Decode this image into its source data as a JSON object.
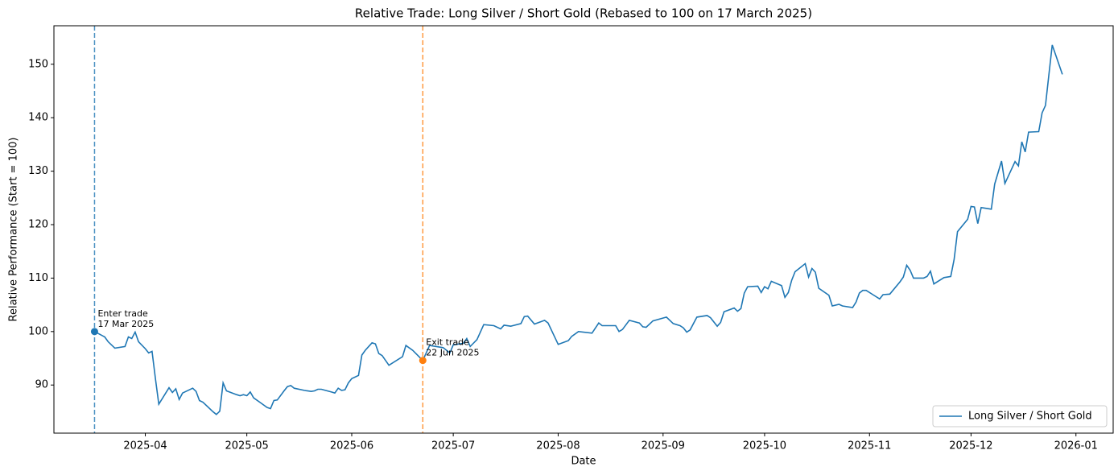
{
  "chart_data": {
    "type": "line",
    "title": "Relative Trade: Long Silver / Short Gold (Rebased to 100 on 17 March 2025)",
    "xlabel": "Date",
    "ylabel": "Relative Performance (Start = 100)",
    "x": [
      "2025-03-17",
      "2025-03-20",
      "2025-03-21",
      "2025-03-23",
      "2025-03-26",
      "2025-03-27",
      "2025-03-28",
      "2025-03-29",
      "2025-03-30",
      "2025-04-01",
      "2025-04-02",
      "2025-04-03",
      "2025-04-04",
      "2025-04-05",
      "2025-04-08",
      "2025-04-09",
      "2025-04-10",
      "2025-04-11",
      "2025-04-12",
      "2025-04-15",
      "2025-04-16",
      "2025-04-17",
      "2025-04-18",
      "2025-04-21",
      "2025-04-22",
      "2025-04-23",
      "2025-04-24",
      "2025-04-25",
      "2025-04-28",
      "2025-04-29",
      "2025-04-30",
      "2025-05-01",
      "2025-05-02",
      "2025-05-03",
      "2025-05-05",
      "2025-05-07",
      "2025-05-08",
      "2025-05-09",
      "2025-05-10",
      "2025-05-12",
      "2025-05-13",
      "2025-05-14",
      "2025-05-15",
      "2025-05-18",
      "2025-05-20",
      "2025-05-21",
      "2025-05-22",
      "2025-05-23",
      "2025-05-26",
      "2025-05-27",
      "2025-05-28",
      "2025-05-29",
      "2025-05-30",
      "2025-05-31",
      "2025-06-01",
      "2025-06-03",
      "2025-06-04",
      "2025-06-05",
      "2025-06-07",
      "2025-06-08",
      "2025-06-09",
      "2025-06-10",
      "2025-06-12",
      "2025-06-16",
      "2025-06-17",
      "2025-06-19",
      "2025-06-22",
      "2025-06-24",
      "2025-06-28",
      "2025-06-30",
      "2025-07-01",
      "2025-07-04",
      "2025-07-05",
      "2025-07-06",
      "2025-07-08",
      "2025-07-10",
      "2025-07-13",
      "2025-07-15",
      "2025-07-16",
      "2025-07-18",
      "2025-07-21",
      "2025-07-22",
      "2025-07-23",
      "2025-07-25",
      "2025-07-28",
      "2025-07-29",
      "2025-08-01",
      "2025-08-04",
      "2025-08-05",
      "2025-08-07",
      "2025-08-11",
      "2025-08-13",
      "2025-08-14",
      "2025-08-18",
      "2025-08-19",
      "2025-08-20",
      "2025-08-22",
      "2025-08-25",
      "2025-08-26",
      "2025-08-27",
      "2025-08-29",
      "2025-09-02",
      "2025-09-04",
      "2025-09-06",
      "2025-09-07",
      "2025-09-08",
      "2025-09-09",
      "2025-09-11",
      "2025-09-14",
      "2025-09-15",
      "2025-09-17",
      "2025-09-18",
      "2025-09-19",
      "2025-09-22",
      "2025-09-23",
      "2025-09-24",
      "2025-09-25",
      "2025-09-26",
      "2025-09-29",
      "2025-09-30",
      "2025-10-01",
      "2025-10-02",
      "2025-10-03",
      "2025-10-06",
      "2025-10-07",
      "2025-10-08",
      "2025-10-09",
      "2025-10-10",
      "2025-10-13",
      "2025-10-14",
      "2025-10-15",
      "2025-10-16",
      "2025-10-17",
      "2025-10-20",
      "2025-10-21",
      "2025-10-23",
      "2025-10-24",
      "2025-10-27",
      "2025-10-28",
      "2025-10-29",
      "2025-10-30",
      "2025-10-31",
      "2025-11-02",
      "2025-11-04",
      "2025-11-05",
      "2025-11-07",
      "2025-11-10",
      "2025-11-11",
      "2025-11-12",
      "2025-11-13",
      "2025-11-14",
      "2025-11-17",
      "2025-11-18",
      "2025-11-19",
      "2025-11-20",
      "2025-11-23",
      "2025-11-25",
      "2025-11-26",
      "2025-11-27",
      "2025-11-30",
      "2025-12-01",
      "2025-12-02",
      "2025-12-03",
      "2025-12-04",
      "2025-12-07",
      "2025-12-08",
      "2025-12-10",
      "2025-12-11",
      "2025-12-14",
      "2025-12-15",
      "2025-12-16",
      "2025-12-17",
      "2025-12-18",
      "2025-12-21",
      "2025-12-22",
      "2025-12-23",
      "2025-12-24",
      "2025-12-25",
      "2025-12-28"
    ],
    "series": [
      {
        "name": "Long Silver / Short Gold",
        "color": "#1f77b4",
        "values": [
          100.0,
          99.0,
          98.1,
          96.9,
          97.2,
          99.0,
          98.7,
          99.9,
          98.1,
          96.8,
          96.0,
          96.3,
          91.2,
          86.4,
          89.5,
          88.6,
          89.3,
          87.3,
          88.5,
          89.4,
          88.8,
          87.1,
          86.8,
          85.0,
          84.5,
          85.1,
          90.4,
          88.9,
          88.2,
          88.0,
          88.2,
          88.0,
          88.7,
          87.6,
          86.7,
          85.8,
          85.6,
          87.1,
          87.2,
          88.9,
          89.7,
          89.9,
          89.4,
          89.0,
          88.8,
          88.9,
          89.2,
          89.2,
          88.7,
          88.5,
          89.4,
          89.0,
          89.1,
          90.4,
          91.2,
          91.8,
          95.6,
          96.5,
          97.9,
          97.7,
          95.9,
          95.5,
          93.7,
          95.3,
          97.4,
          96.5,
          94.6,
          97.4,
          97.0,
          96.0,
          97.5,
          97.8,
          98.7,
          97.2,
          98.5,
          101.3,
          101.1,
          100.5,
          101.2,
          101.0,
          101.5,
          102.8,
          102.9,
          101.4,
          102.1,
          101.6,
          97.6,
          98.3,
          99.1,
          100.0,
          99.7,
          101.6,
          101.1,
          101.1,
          100.0,
          100.4,
          102.1,
          101.6,
          100.9,
          100.8,
          102.0,
          102.7,
          101.5,
          101.1,
          100.7,
          99.9,
          100.3,
          102.7,
          103.0,
          102.6,
          101.0,
          101.7,
          103.7,
          104.4,
          103.8,
          104.3,
          107.2,
          108.4,
          108.5,
          107.3,
          108.4,
          108.0,
          109.4,
          108.6,
          106.4,
          107.3,
          109.6,
          111.2,
          112.7,
          110.2,
          111.8,
          111.1,
          108.1,
          106.8,
          104.8,
          105.1,
          104.8,
          104.5,
          105.5,
          107.2,
          107.7,
          107.7,
          106.9,
          106.1,
          106.9,
          107.0,
          109.3,
          110.2,
          112.4,
          111.5,
          110.0,
          110.0,
          110.3,
          111.3,
          108.9,
          110.1,
          110.3,
          113.5,
          118.7,
          121.0,
          123.4,
          123.3,
          120.2,
          123.2,
          122.9,
          127.6,
          131.9,
          127.7,
          131.8,
          131.0,
          135.5,
          133.6,
          137.3,
          137.4,
          140.9,
          142.3,
          148.0,
          153.6,
          148.1
        ]
      }
    ],
    "xlim": [
      "2025-03-05",
      "2026-01-12"
    ],
    "xticks": [
      {
        "value": "2025-04-01",
        "label": "2025-04"
      },
      {
        "value": "2025-05-01",
        "label": "2025-05"
      },
      {
        "value": "2025-06-01",
        "label": "2025-06"
      },
      {
        "value": "2025-07-01",
        "label": "2025-07"
      },
      {
        "value": "2025-08-01",
        "label": "2025-08"
      },
      {
        "value": "2025-09-01",
        "label": "2025-09"
      },
      {
        "value": "2025-10-01",
        "label": "2025-10"
      },
      {
        "value": "2025-11-01",
        "label": "2025-11"
      },
      {
        "value": "2025-12-01",
        "label": "2025-12"
      },
      {
        "value": "2026-01-01",
        "label": "2026-01"
      }
    ],
    "ylim": [
      81,
      157.2
    ],
    "yticks": [
      90,
      100,
      110,
      120,
      130,
      140,
      150
    ],
    "legend": "lower right",
    "events": [
      {
        "x": "2025-03-17",
        "value": 100.0,
        "color": "#1f77b4",
        "label": [
          "Enter trade",
          "17 Mar 2025"
        ]
      },
      {
        "x": "2025-06-22",
        "value": 94.6,
        "color": "#ff7f0e",
        "label": [
          "Exit trade",
          "22 Jun 2025"
        ]
      }
    ]
  }
}
